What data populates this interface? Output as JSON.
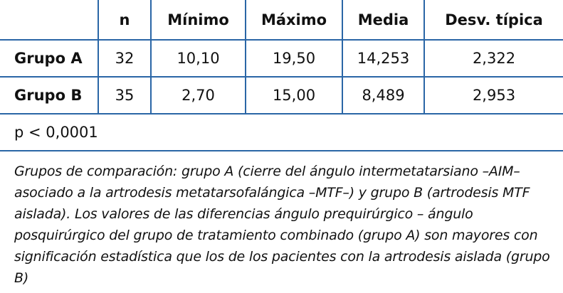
{
  "table": {
    "headers": [
      "",
      "n",
      "Mínimo",
      "Máximo",
      "Media",
      "Desv. típica"
    ],
    "rows": [
      {
        "label": "Grupo A",
        "n": "32",
        "min": "10,10",
        "max": "19,50",
        "mean": "14,253",
        "sd": "2,322"
      },
      {
        "label": "Grupo B",
        "n": "35",
        "min": "2,70",
        "max": "15,00",
        "mean": "8,489",
        "sd": "2,953"
      }
    ],
    "p_value": "p < 0,0001"
  },
  "note": "Grupos de comparación: grupo A (cierre del ángulo intermetatarsiano –AIM– asociado a la artrodesis metatarsofalángica –MTF–) y grupo B (artrodesis MTF aislada). Los valores de las diferencias ángulo prequirúrgico – ángulo posquirúrgico del grupo de tratamiento combinado (grupo A) son mayores con significación estadística que los de los pacientes con la artrodesis aislada (grupo B)",
  "colors": {
    "border": "#2a66a6"
  }
}
